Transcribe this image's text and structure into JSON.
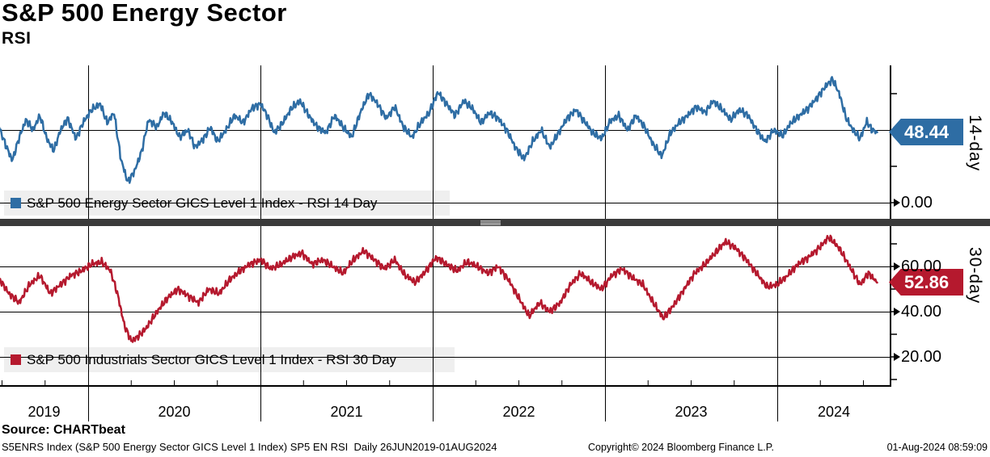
{
  "header": {
    "title": "S&P 500 Energy Sector",
    "subtitle": "RSI"
  },
  "panels": [
    {
      "side_label": "14-day",
      "last_value_label": "48.44",
      "legend": "S&P 500 Energy Sector GICS Level 1 Index - RSI 14 Day",
      "color": "#2e6da4"
    },
    {
      "side_label": "30-day",
      "last_value_label": "52.86",
      "legend": "S&P 500 Industrials Sector GICS Level 1 Index - RSI 30 Day",
      "color": "#b5192e"
    }
  ],
  "footer": {
    "source": "Source: CHARTbeat",
    "ticker_line": "S5ENRS Index (S&P 500 Energy Sector GICS Level 1 Index) SP5 EN RSI  Daily 26JUN2019-01AUG2024",
    "copyright": "Copyright© 2024 Bloomberg Finance L.P.",
    "datetime": "01-Aug-2024 08:59:09"
  },
  "x_axis": {
    "year_labels": [
      "2019",
      "2020",
      "2021",
      "2022",
      "2023",
      "2024"
    ],
    "year_boundaries": [
      2020,
      2021,
      2022,
      2023,
      2024
    ]
  },
  "chart_data": [
    {
      "type": "line",
      "title": "S&P 500 Energy Sector RSI",
      "series_name": "S&P 500 Energy Sector GICS Level 1 Index - RSI 14 Day",
      "side_label": "14-day",
      "color": "#2e6da4",
      "x_range": [
        2019.48,
        2024.58
      ],
      "ylim": [
        0,
        94
      ],
      "yticks": [
        0,
        25,
        50,
        75
      ],
      "ytick_labels": [
        {
          "value": 0,
          "label": "0.00"
        }
      ],
      "gridline_values": [
        0,
        50
      ],
      "last_value": 48.44,
      "noise_amp": 3.2,
      "points": [
        [
          2019.48,
          53
        ],
        [
          2019.52,
          40
        ],
        [
          2019.56,
          29
        ],
        [
          2019.6,
          45
        ],
        [
          2019.64,
          57
        ],
        [
          2019.68,
          50
        ],
        [
          2019.72,
          60
        ],
        [
          2019.76,
          44
        ],
        [
          2019.8,
          36
        ],
        [
          2019.84,
          50
        ],
        [
          2019.88,
          58
        ],
        [
          2019.93,
          44
        ],
        [
          2019.97,
          55
        ],
        [
          2020.02,
          64
        ],
        [
          2020.07,
          68
        ],
        [
          2020.11,
          55
        ],
        [
          2020.15,
          62
        ],
        [
          2020.19,
          30
        ],
        [
          2020.23,
          14
        ],
        [
          2020.27,
          22
        ],
        [
          2020.31,
          35
        ],
        [
          2020.35,
          57
        ],
        [
          2020.4,
          52
        ],
        [
          2020.44,
          62
        ],
        [
          2020.49,
          55
        ],
        [
          2020.53,
          45
        ],
        [
          2020.58,
          50
        ],
        [
          2020.62,
          38
        ],
        [
          2020.67,
          44
        ],
        [
          2020.71,
          52
        ],
        [
          2020.75,
          42
        ],
        [
          2020.8,
          50
        ],
        [
          2020.85,
          60
        ],
        [
          2020.9,
          55
        ],
        [
          2020.95,
          65
        ],
        [
          2021,
          68
        ],
        [
          2021.04,
          60
        ],
        [
          2021.08,
          48
        ],
        [
          2021.13,
          55
        ],
        [
          2021.18,
          65
        ],
        [
          2021.23,
          70
        ],
        [
          2021.28,
          60
        ],
        [
          2021.33,
          52
        ],
        [
          2021.38,
          48
        ],
        [
          2021.43,
          60
        ],
        [
          2021.48,
          52
        ],
        [
          2021.53,
          45
        ],
        [
          2021.58,
          62
        ],
        [
          2021.63,
          75
        ],
        [
          2021.68,
          68
        ],
        [
          2021.73,
          58
        ],
        [
          2021.78,
          66
        ],
        [
          2021.83,
          52
        ],
        [
          2021.88,
          45
        ],
        [
          2021.93,
          55
        ],
        [
          2021.98,
          62
        ],
        [
          2022.03,
          76
        ],
        [
          2022.08,
          68
        ],
        [
          2022.13,
          60
        ],
        [
          2022.18,
          70
        ],
        [
          2022.23,
          65
        ],
        [
          2022.28,
          55
        ],
        [
          2022.33,
          62
        ],
        [
          2022.38,
          58
        ],
        [
          2022.43,
          50
        ],
        [
          2022.48,
          38
        ],
        [
          2022.53,
          30
        ],
        [
          2022.58,
          42
        ],
        [
          2022.63,
          50
        ],
        [
          2022.68,
          38
        ],
        [
          2022.73,
          48
        ],
        [
          2022.78,
          58
        ],
        [
          2022.83,
          64
        ],
        [
          2022.88,
          56
        ],
        [
          2022.93,
          48
        ],
        [
          2022.98,
          44
        ],
        [
          2023.03,
          56
        ],
        [
          2023.08,
          60
        ],
        [
          2023.13,
          50
        ],
        [
          2023.18,
          60
        ],
        [
          2023.23,
          52
        ],
        [
          2023.28,
          40
        ],
        [
          2023.33,
          32
        ],
        [
          2023.38,
          48
        ],
        [
          2023.43,
          55
        ],
        [
          2023.48,
          60
        ],
        [
          2023.53,
          66
        ],
        [
          2023.58,
          62
        ],
        [
          2023.63,
          70
        ],
        [
          2023.68,
          64
        ],
        [
          2023.73,
          57
        ],
        [
          2023.78,
          64
        ],
        [
          2023.83,
          60
        ],
        [
          2023.88,
          50
        ],
        [
          2023.93,
          42
        ],
        [
          2023.98,
          50
        ],
        [
          2024.03,
          46
        ],
        [
          2024.08,
          55
        ],
        [
          2024.13,
          60
        ],
        [
          2024.18,
          65
        ],
        [
          2024.23,
          72
        ],
        [
          2024.28,
          80
        ],
        [
          2024.32,
          85
        ],
        [
          2024.36,
          75
        ],
        [
          2024.4,
          58
        ],
        [
          2024.44,
          50
        ],
        [
          2024.48,
          44
        ],
        [
          2024.52,
          56
        ],
        [
          2024.55,
          50
        ],
        [
          2024.58,
          48.44
        ]
      ]
    },
    {
      "type": "line",
      "title": "S&P 500 Industrials Sector RSI",
      "series_name": "S&P 500 Industrials Sector GICS Level 1 Index - RSI 30 Day",
      "side_label": "30-day",
      "color": "#b5192e",
      "x_range": [
        2019.48,
        2024.58
      ],
      "ylim": [
        3,
        78
      ],
      "yticks": [
        10,
        20,
        30,
        40,
        50,
        60,
        70
      ],
      "ytick_labels": [
        {
          "value": 60,
          "label": "60.00"
        },
        {
          "value": 40,
          "label": "40.00"
        },
        {
          "value": 20,
          "label": "20.00"
        }
      ],
      "gridline_values": [
        20,
        40,
        60
      ],
      "last_value": 52.86,
      "noise_amp": 2.0,
      "points": [
        [
          2019.48,
          55
        ],
        [
          2019.54,
          48
        ],
        [
          2019.6,
          44
        ],
        [
          2019.66,
          52
        ],
        [
          2019.72,
          56
        ],
        [
          2019.78,
          48
        ],
        [
          2019.84,
          52
        ],
        [
          2019.9,
          56
        ],
        [
          2019.96,
          58
        ],
        [
          2020.02,
          61
        ],
        [
          2020.08,
          62
        ],
        [
          2020.13,
          58
        ],
        [
          2020.17,
          48
        ],
        [
          2020.21,
          34
        ],
        [
          2020.25,
          27
        ],
        [
          2020.29,
          29
        ],
        [
          2020.34,
          33
        ],
        [
          2020.4,
          40
        ],
        [
          2020.46,
          46
        ],
        [
          2020.52,
          50
        ],
        [
          2020.58,
          47
        ],
        [
          2020.64,
          44
        ],
        [
          2020.7,
          50
        ],
        [
          2020.76,
          48
        ],
        [
          2020.82,
          54
        ],
        [
          2020.88,
          58
        ],
        [
          2020.94,
          61
        ],
        [
          2021,
          63
        ],
        [
          2021.06,
          59
        ],
        [
          2021.12,
          61
        ],
        [
          2021.18,
          64
        ],
        [
          2021.24,
          66
        ],
        [
          2021.3,
          61
        ],
        [
          2021.36,
          63
        ],
        [
          2021.42,
          60
        ],
        [
          2021.48,
          57
        ],
        [
          2021.54,
          63
        ],
        [
          2021.6,
          67
        ],
        [
          2021.66,
          63
        ],
        [
          2021.72,
          59
        ],
        [
          2021.78,
          63
        ],
        [
          2021.84,
          56
        ],
        [
          2021.9,
          53
        ],
        [
          2021.96,
          58
        ],
        [
          2022.02,
          64
        ],
        [
          2022.08,
          61
        ],
        [
          2022.14,
          58
        ],
        [
          2022.2,
          62
        ],
        [
          2022.26,
          60
        ],
        [
          2022.32,
          57
        ],
        [
          2022.38,
          60
        ],
        [
          2022.44,
          54
        ],
        [
          2022.5,
          46
        ],
        [
          2022.56,
          38
        ],
        [
          2022.62,
          44
        ],
        [
          2022.68,
          40
        ],
        [
          2022.74,
          44
        ],
        [
          2022.8,
          52
        ],
        [
          2022.86,
          57
        ],
        [
          2022.92,
          53
        ],
        [
          2022.98,
          50
        ],
        [
          2023.04,
          56
        ],
        [
          2023.1,
          59
        ],
        [
          2023.16,
          55
        ],
        [
          2023.22,
          52
        ],
        [
          2023.28,
          44
        ],
        [
          2023.34,
          37
        ],
        [
          2023.4,
          43
        ],
        [
          2023.46,
          50
        ],
        [
          2023.52,
          57
        ],
        [
          2023.58,
          61
        ],
        [
          2023.64,
          66
        ],
        [
          2023.7,
          71
        ],
        [
          2023.76,
          68
        ],
        [
          2023.82,
          63
        ],
        [
          2023.88,
          57
        ],
        [
          2023.94,
          51
        ],
        [
          2024,
          52
        ],
        [
          2024.06,
          56
        ],
        [
          2024.12,
          61
        ],
        [
          2024.18,
          64
        ],
        [
          2024.24,
          68
        ],
        [
          2024.3,
          73
        ],
        [
          2024.36,
          68
        ],
        [
          2024.42,
          60
        ],
        [
          2024.48,
          52
        ],
        [
          2024.53,
          57
        ],
        [
          2024.58,
          52.86
        ]
      ]
    }
  ]
}
